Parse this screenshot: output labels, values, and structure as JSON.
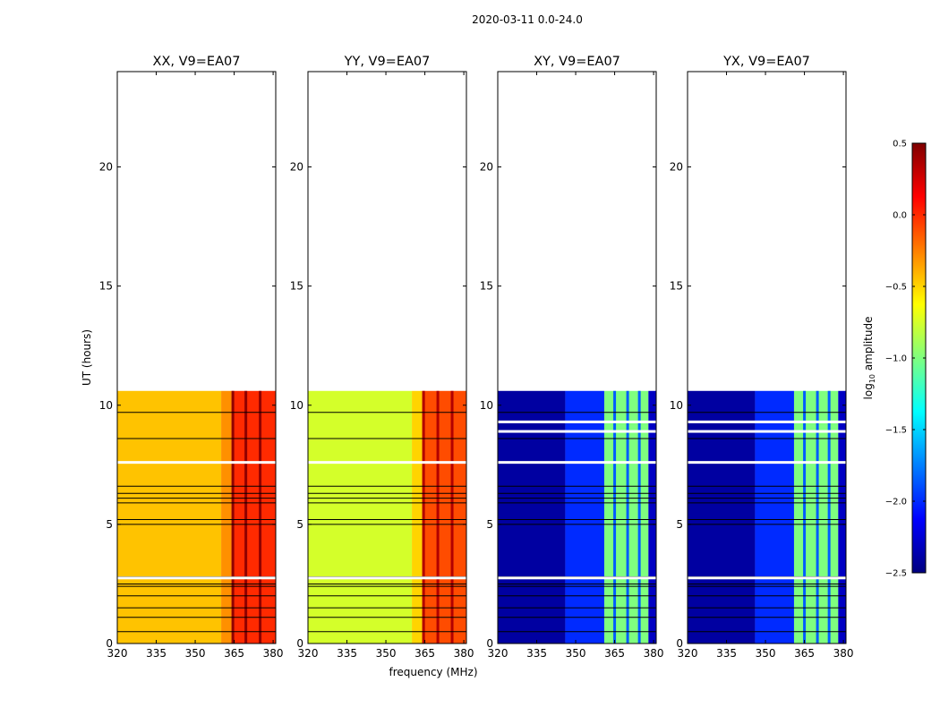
{
  "figure_title": "2020-03-11 0.0-24.0",
  "colorbar": {
    "label": "log10 amplitude",
    "label_base": "log",
    "label_sub": "10",
    "label_rest": " amplitude",
    "min": -2.5,
    "max": 0.5,
    "ticks": [
      0.5,
      0.0,
      -0.5,
      -1.0,
      -1.5,
      -2.0,
      -2.5
    ],
    "tick_labels": [
      "0.5",
      "0.0",
      "−0.5",
      "−1.0",
      "−1.5",
      "−2.0",
      "−2.5"
    ],
    "colormap": "jet",
    "colormap_stops": [
      "#00007f",
      "#0000ff",
      "#007fff",
      "#00ffff",
      "#7fff7f",
      "#ffff00",
      "#ff7f00",
      "#ff0000",
      "#7f0000"
    ]
  },
  "chart_data": [
    {
      "type": "heatmap",
      "title": "XX, V9=EA07",
      "xlabel": "",
      "ylabel": "UT (hours)",
      "xlim": [
        320,
        381
      ],
      "ylim": [
        0,
        24
      ],
      "xticks": [
        320,
        335,
        350,
        365,
        380
      ],
      "xtick_labels": [
        "320",
        "335",
        "350",
        "365",
        "380"
      ],
      "yticks": [
        0,
        5,
        10,
        15,
        20
      ],
      "ytick_labels": [
        "0",
        "5",
        "10",
        "15",
        "20"
      ],
      "data_extent_hours": [
        0,
        10.6
      ],
      "freq_band_segments": [
        {
          "freq": [
            320,
            360
          ],
          "log_amplitude": -0.45
        },
        {
          "freq": [
            360,
            364
          ],
          "log_amplitude": -0.3
        },
        {
          "freq": [
            364,
            381
          ],
          "log_amplitude": 0.0
        }
      ],
      "strong_channels_mhz": [
        364.5,
        369.5,
        375.0
      ],
      "flagged_rows_hours": [
        0.5,
        1.1,
        1.5,
        2.0,
        2.4,
        2.5,
        2.8,
        5.0,
        5.2,
        5.9,
        6.1,
        6.3,
        6.6,
        8.6,
        9.7
      ],
      "gap_rows_hours": [
        2.75,
        7.6
      ]
    },
    {
      "type": "heatmap",
      "title": "YY, V9=EA07",
      "xlabel": "frequency (MHz)",
      "ylabel": "",
      "xlim": [
        320,
        381
      ],
      "ylim": [
        0,
        24
      ],
      "xticks": [
        320,
        335,
        350,
        365,
        380
      ],
      "xtick_labels": [
        "320",
        "335",
        "350",
        "365",
        "380"
      ],
      "yticks": [
        0,
        5,
        10,
        15,
        20
      ],
      "ytick_labels": [
        "0",
        "5",
        "10",
        "15",
        "20"
      ],
      "data_extent_hours": [
        0,
        10.6
      ],
      "freq_band_segments": [
        {
          "freq": [
            320,
            360
          ],
          "log_amplitude": -0.75
        },
        {
          "freq": [
            360,
            364
          ],
          "log_amplitude": -0.5
        },
        {
          "freq": [
            364,
            381
          ],
          "log_amplitude": -0.1
        }
      ],
      "strong_channels_mhz": [
        364.5,
        370.0,
        375.5
      ],
      "flagged_rows_hours": [
        0.5,
        1.1,
        1.5,
        2.0,
        2.4,
        2.5,
        2.8,
        5.0,
        5.2,
        5.9,
        6.1,
        6.3,
        6.6,
        8.6,
        9.7
      ],
      "gap_rows_hours": [
        2.75,
        7.6
      ]
    },
    {
      "type": "heatmap",
      "title": "XY, V9=EA07",
      "xlabel": "",
      "ylabel": "",
      "xlim": [
        320,
        381
      ],
      "ylim": [
        0,
        24
      ],
      "xticks": [
        320,
        335,
        350,
        365,
        380
      ],
      "xtick_labels": [
        "320",
        "335",
        "350",
        "365",
        "380"
      ],
      "yticks": [
        0,
        5,
        10,
        15,
        20
      ],
      "ytick_labels": [
        "0",
        "5",
        "10",
        "15",
        "20"
      ],
      "data_extent_hours": [
        0,
        10.6
      ],
      "freq_band_segments": [
        {
          "freq": [
            320,
            346
          ],
          "log_amplitude": -2.4
        },
        {
          "freq": [
            346,
            361
          ],
          "log_amplitude": -2.0
        },
        {
          "freq": [
            361,
            378
          ],
          "log_amplitude": -1.0
        },
        {
          "freq": [
            378,
            381
          ],
          "log_amplitude": -2.3
        }
      ],
      "strong_channels_mhz": [
        365.0,
        370.0,
        374.5
      ],
      "flagged_rows_hours": [
        0.5,
        1.1,
        1.5,
        2.0,
        2.4,
        2.5,
        2.8,
        5.0,
        5.2,
        5.9,
        6.1,
        6.3,
        6.6,
        8.6,
        9.7
      ],
      "gap_rows_hours": [
        2.75,
        7.6,
        9.3,
        8.9
      ]
    },
    {
      "type": "heatmap",
      "title": "YX, V9=EA07",
      "xlabel": "",
      "ylabel": "",
      "xlim": [
        320,
        381
      ],
      "ylim": [
        0,
        24
      ],
      "xticks": [
        320,
        335,
        350,
        365,
        380
      ],
      "xtick_labels": [
        "320",
        "335",
        "350",
        "365",
        "380"
      ],
      "yticks": [
        0,
        5,
        10,
        15,
        20
      ],
      "ytick_labels": [
        "0",
        "5",
        "10",
        "15",
        "20"
      ],
      "data_extent_hours": [
        0,
        10.6
      ],
      "freq_band_segments": [
        {
          "freq": [
            320,
            346
          ],
          "log_amplitude": -2.4
        },
        {
          "freq": [
            346,
            361
          ],
          "log_amplitude": -2.0
        },
        {
          "freq": [
            361,
            378
          ],
          "log_amplitude": -1.0
        },
        {
          "freq": [
            378,
            381
          ],
          "log_amplitude": -2.3
        }
      ],
      "strong_channels_mhz": [
        365.0,
        370.0,
        374.5
      ],
      "flagged_rows_hours": [
        0.5,
        1.1,
        1.5,
        2.0,
        2.4,
        2.5,
        2.8,
        5.0,
        5.2,
        5.9,
        6.1,
        6.3,
        6.6,
        8.6,
        9.7
      ],
      "gap_rows_hours": [
        2.75,
        7.6,
        9.3,
        8.9
      ]
    }
  ]
}
